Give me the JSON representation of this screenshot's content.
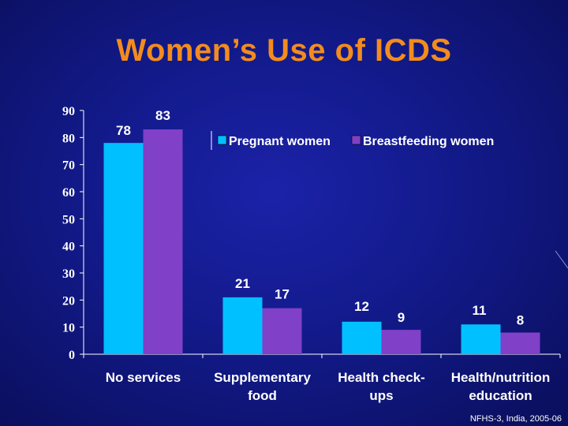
{
  "title": "Women’s Use of ICDS",
  "source": "NFHS-3, India, 2005-06",
  "colors": {
    "pregnant": "#00c0ff",
    "breastfeeding": "#8040c8",
    "title": "#f28c1e",
    "axis": "#ffffff"
  },
  "chart_data": {
    "type": "bar",
    "title": "Women’s Use of ICDS",
    "categories": [
      [
        "No services"
      ],
      [
        "Supplementary",
        "food"
      ],
      [
        "Health check-",
        "ups"
      ],
      [
        "Health/nutrition",
        "education"
      ]
    ],
    "series": [
      {
        "name": "Pregnant women",
        "values": [
          78,
          21,
          12,
          11
        ]
      },
      {
        "name": "Breastfeeding women",
        "values": [
          83,
          17,
          9,
          8
        ]
      }
    ],
    "ylim": [
      0,
      90
    ],
    "yticks": [
      "0",
      "10",
      "20",
      "30",
      "40",
      "50",
      "60",
      "70",
      "80",
      "90"
    ],
    "xlabel": "",
    "ylabel": "",
    "legend_position": "top-right"
  }
}
